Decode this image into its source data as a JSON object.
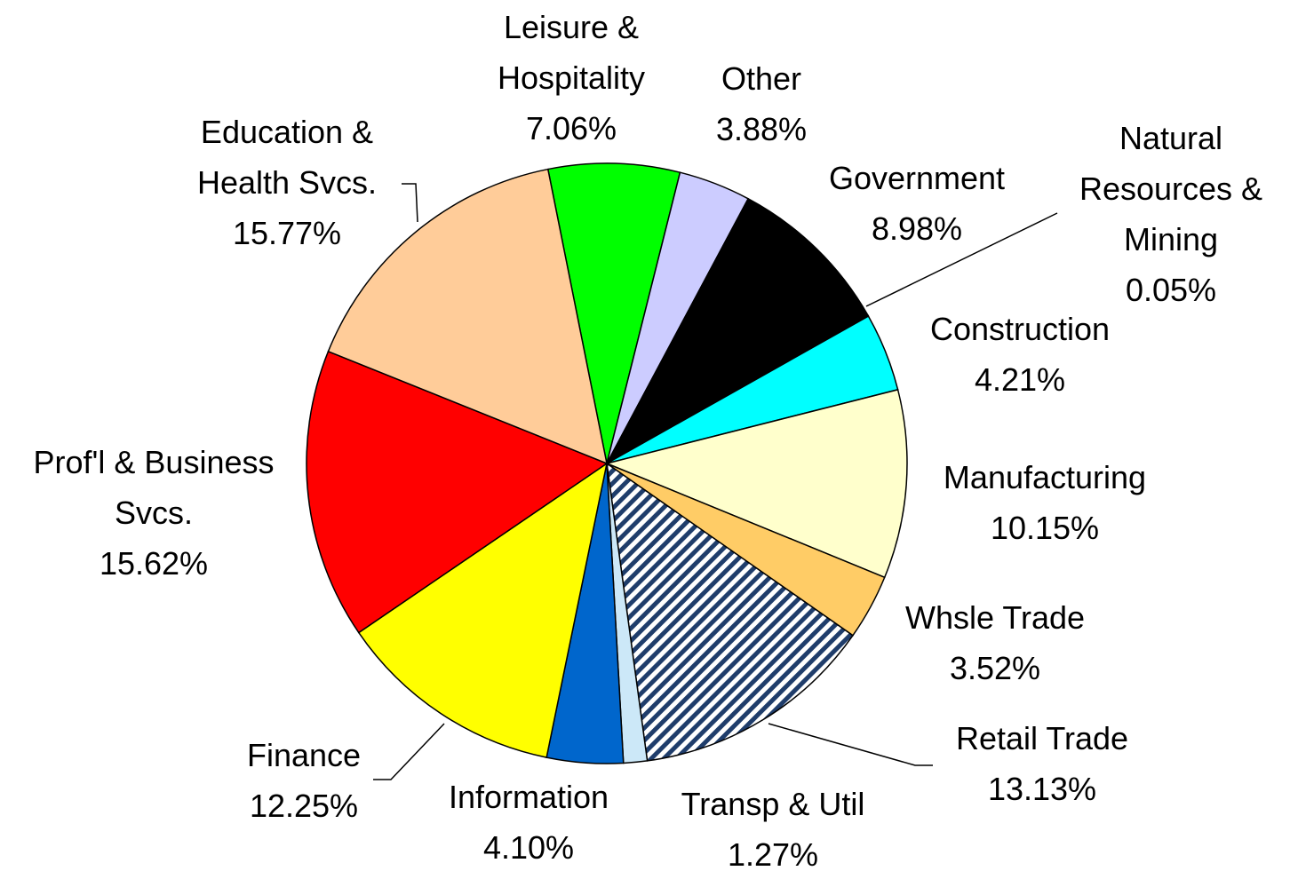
{
  "chart_data": {
    "type": "pie",
    "categories": [
      "Leisure &\nHospitality",
      "Other",
      "Government",
      "Natural\nResources &\nMining",
      "Construction",
      "Manufacturing",
      "Whsle Trade",
      "Retail Trade",
      "Transp & Util",
      "Information",
      "Finance",
      "Prof'l & Business\nSvcs.",
      "Education &\nHealth Svcs."
    ],
    "values": [
      7.06,
      3.88,
      8.98,
      0.05,
      4.21,
      10.15,
      3.52,
      13.13,
      1.27,
      4.1,
      12.25,
      15.62,
      15.77
    ],
    "value_labels": [
      "7.06%",
      "3.88%",
      "8.98%",
      "0.05%",
      "4.21%",
      "10.15%",
      "3.52%",
      "13.13%",
      "1.27%",
      "4.10%",
      "12.25%",
      "15.62%",
      "15.77%"
    ],
    "colors": [
      "#00ff00",
      "#ccccff",
      "#000000",
      "#808080",
      "#00ffff",
      "#ffffcc",
      "#ffcc66",
      "#1f3d6b",
      "#cce8f8",
      "#0066cc",
      "#ffff00",
      "#ff0000",
      "#ffcc99"
    ],
    "hatch": [
      false,
      false,
      false,
      false,
      false,
      false,
      false,
      true,
      false,
      false,
      false,
      false,
      false
    ]
  }
}
